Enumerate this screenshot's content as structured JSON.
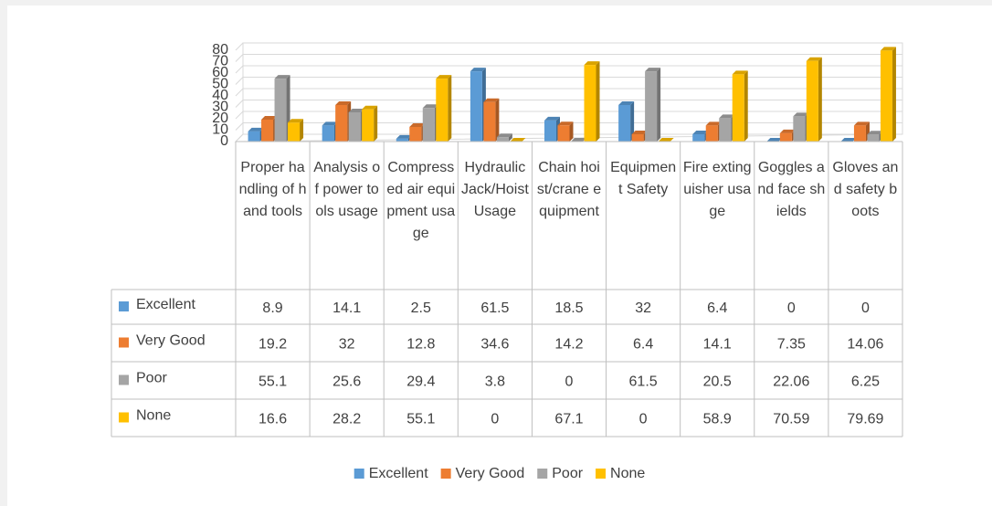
{
  "chart_data": {
    "type": "bar",
    "categories": [
      "Proper handling of hand tools",
      "Analysis of power tools usage",
      "Compressed air equipment usage",
      "Hydraulic Jack/Hoist Usage",
      "Chain hoist/crane equipment",
      "Equipment Safety",
      "Fire extinguisher usage",
      "Goggles and face shields",
      "Gloves and safety boots"
    ],
    "series": [
      {
        "name": "Excellent",
        "color": "#5b9bd5",
        "values": [
          8.9,
          14.1,
          2.5,
          61.5,
          18.5,
          32,
          6.4,
          0,
          0
        ]
      },
      {
        "name": "Very Good",
        "color": "#ed7d31",
        "values": [
          19.2,
          32,
          12.8,
          34.6,
          14.2,
          6.4,
          14.1,
          7.35,
          14.06
        ]
      },
      {
        "name": "Poor",
        "color": "#a5a5a5",
        "values": [
          55.1,
          25.6,
          29.4,
          3.8,
          0,
          61.5,
          20.5,
          22.06,
          6.25
        ]
      },
      {
        "name": "None",
        "color": "#ffc000",
        "values": [
          16.6,
          28.2,
          55.1,
          0,
          67.1,
          0,
          58.9,
          70.59,
          79.69
        ]
      }
    ],
    "ylim": [
      0,
      80
    ],
    "yticks": [
      0,
      10,
      20,
      30,
      40,
      50,
      60,
      70,
      80
    ],
    "grid": true,
    "legend": "bottom"
  }
}
